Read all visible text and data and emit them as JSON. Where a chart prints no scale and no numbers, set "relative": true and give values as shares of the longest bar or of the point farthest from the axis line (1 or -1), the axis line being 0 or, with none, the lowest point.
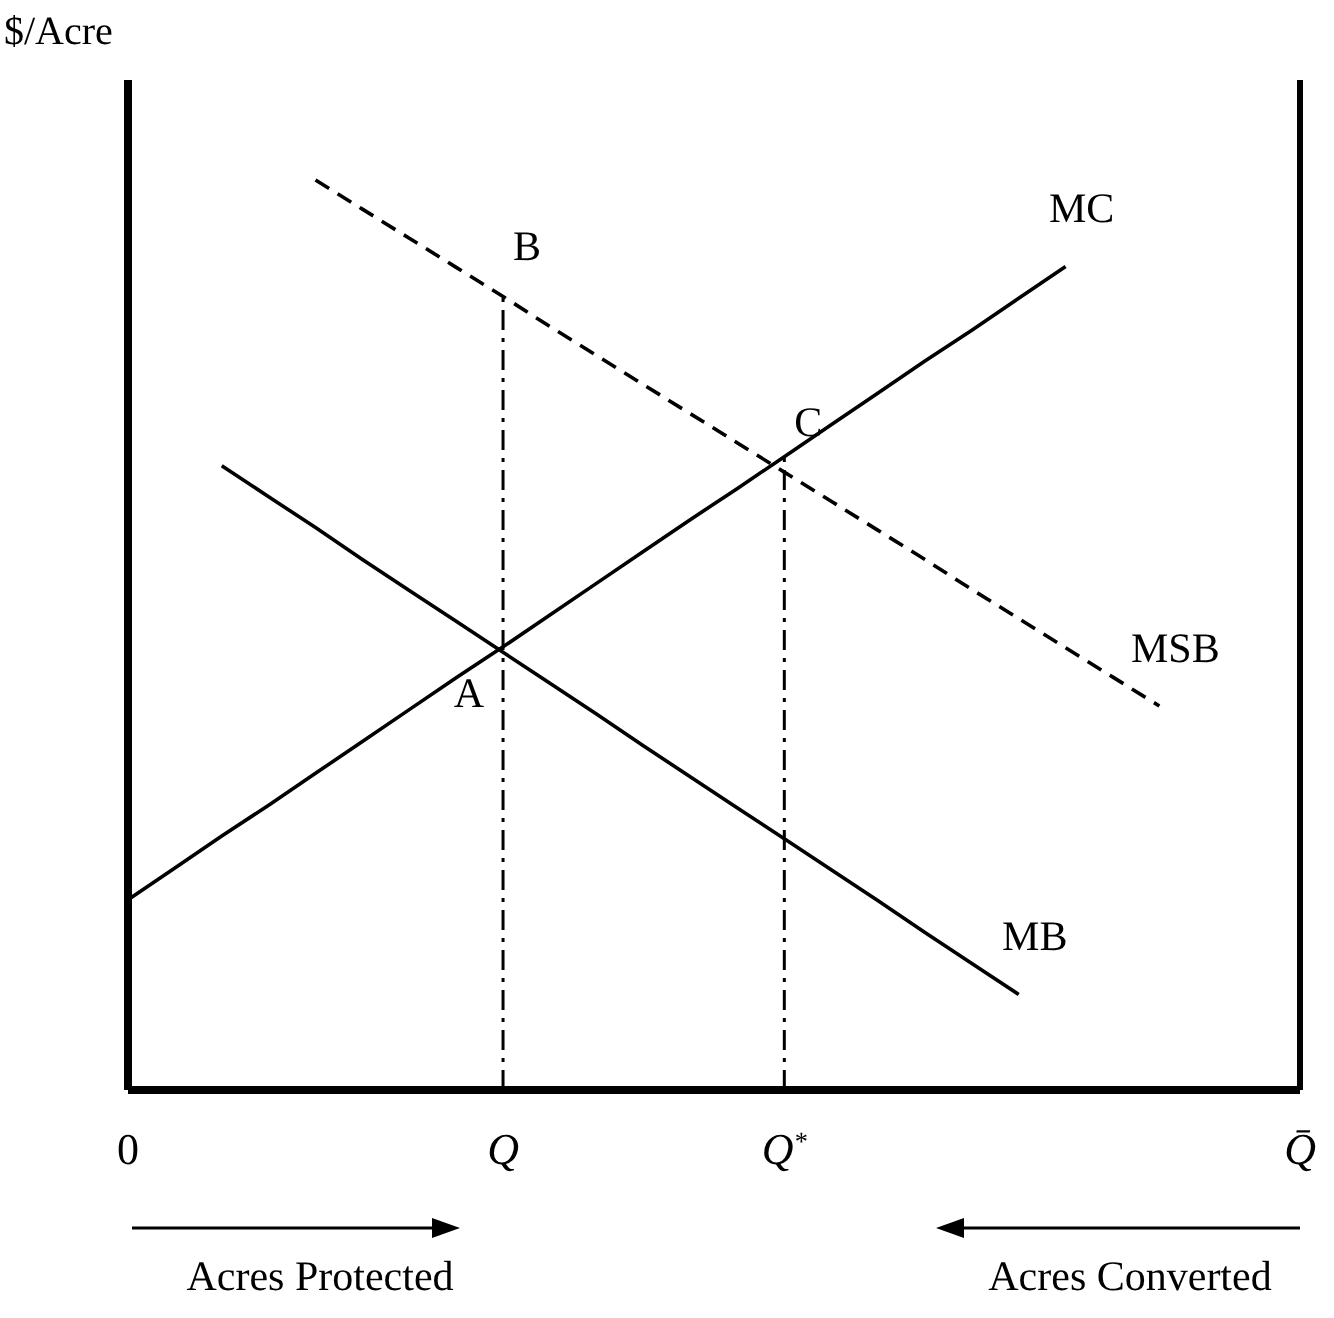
{
  "chart_data": {
    "type": "line",
    "relative": true,
    "ylabel": "$/Acre",
    "tick_labels": "x",
    "line_style": "solid",
    "categories": [
      "0",
      null,
      null,
      null,
      null,
      null,
      null,
      null,
      "Q",
      null,
      null,
      null,
      null,
      null,
      "Q$^{*}$",
      null,
      null,
      null,
      null,
      null,
      null,
      null,
      null,
      null,
      null,
      "Q̄"
    ],
    "series": [
      {
        "name": "MC",
        "color": "#000000",
        "values": [
          0.209,
          0.244,
          0.279,
          0.313,
          0.348,
          0.383,
          0.418,
          0.453,
          0.487,
          0.522,
          0.557,
          0.592,
          0.627,
          0.661,
          0.696,
          0.731,
          0.766,
          0.801,
          0.835,
          0.87,
          0.905,
          null,
          null,
          null,
          null,
          null
        ]
      },
      {
        "name": "MB",
        "color": "#000000",
        "values": [
          null,
          null,
          0.686,
          0.652,
          0.618,
          0.583,
          0.549,
          0.515,
          0.481,
          0.447,
          0.413,
          0.378,
          0.344,
          0.31,
          0.276,
          0.242,
          0.208,
          0.173,
          0.139,
          0.105,
          null,
          null,
          null,
          null,
          null,
          null
        ]
      },
      {
        "name": "MSB",
        "color": "#000000",
        "line_style": "dashed",
        "values": [
          null,
          null,
          null,
          null,
          1,
          0.968,
          0.936,
          0.904,
          0.872,
          0.839,
          0.807,
          0.775,
          0.743,
          0.711,
          0.679,
          0.647,
          0.615,
          0.583,
          0.55,
          0.518,
          0.486,
          0.454,
          0.422,
          null,
          null,
          null
        ]
      }
    ],
    "ref_lines": [
      {
        "axis": "x",
        "value": "Q",
        "color": "#000000",
        "line_style": "dashdot"
      },
      {
        "axis": "x",
        "value": "Q$^{*}$",
        "color": "#000000",
        "line_style": "dashdot"
      }
    ],
    "annotations": [
      {
        "text": "A",
        "x": "Q",
        "y": 0.487
      },
      {
        "text": "B",
        "x": "Q",
        "y": 0.872
      },
      {
        "text": "C",
        "x": "Q$^{*}$",
        "y": 0.679
      },
      "Acres Protected",
      "Acres Converted"
    ]
  }
}
